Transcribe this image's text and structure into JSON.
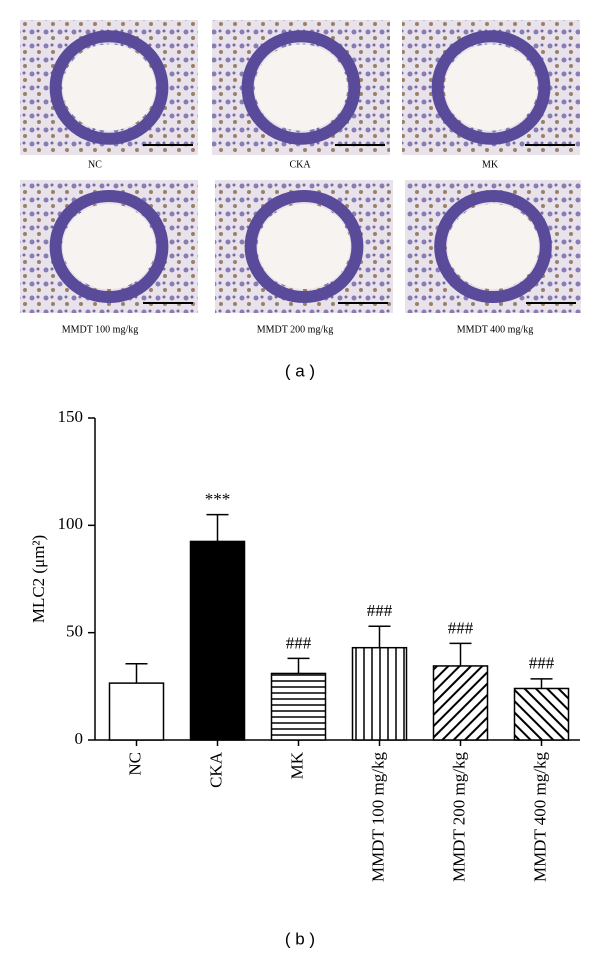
{
  "panel_a": {
    "labels": [
      "NC",
      "CKA",
      "MK",
      "MMDT 100 mg/kg",
      "MMDT 200 mg/kg",
      "MMDT 400 mg/kg"
    ],
    "caption": "( a )"
  },
  "chart_data": {
    "type": "bar",
    "caption": "( b )",
    "y_label": "MLC2 (μm²)",
    "categories": [
      "NC",
      "CKA",
      "MK",
      "MMDT 100 mg/kg",
      "MMDT 200 mg/kg",
      "MMDT 400 mg/kg"
    ],
    "values": [
      26.5,
      92.5,
      31,
      43,
      34.5,
      24
    ],
    "errors": [
      9,
      12.5,
      7,
      10,
      10.5,
      4.5
    ],
    "annotations": [
      null,
      "***",
      "###",
      "###",
      "###",
      "###"
    ],
    "fills": [
      "white",
      "black",
      "horizontal",
      "vertical",
      "diagonal-up",
      "diagonal-down"
    ],
    "ylim": [
      0,
      150
    ],
    "yticks": [
      0,
      50,
      100,
      150
    ]
  }
}
